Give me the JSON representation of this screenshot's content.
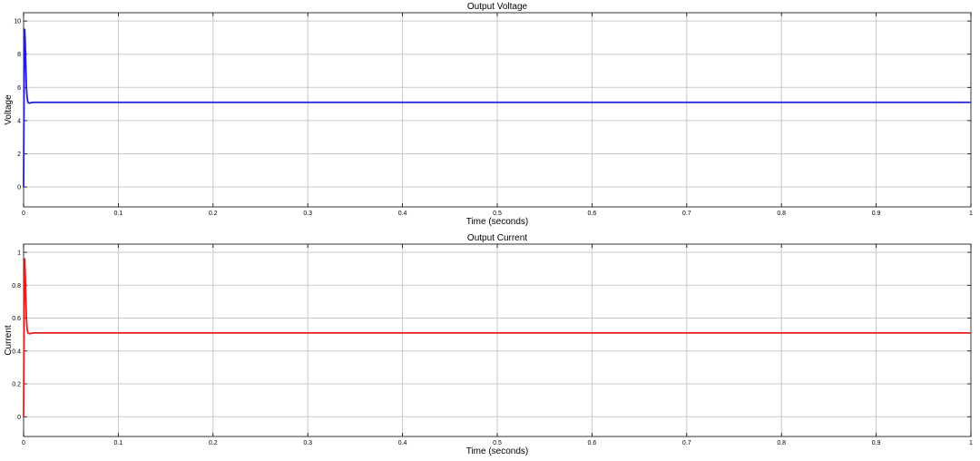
{
  "chart_data": [
    {
      "type": "line",
      "title": "Output Voltage",
      "xlabel": "Time (seconds)",
      "ylabel": "Voltage",
      "xlim": [
        0,
        1
      ],
      "ylim": [
        -1.2,
        10.5
      ],
      "xticks": [
        0,
        0.1,
        0.2,
        0.3,
        0.4,
        0.5,
        0.6,
        0.7,
        0.8,
        0.9,
        1
      ],
      "xtick_labels": [
        "0",
        "0.1",
        "0.2",
        "0.3",
        "0.4",
        "0.5",
        "0.6",
        "0.7",
        "0.8",
        "0.9",
        "1"
      ],
      "yticks": [
        0,
        2,
        4,
        6,
        8,
        10
      ],
      "ytick_labels": [
        "0",
        "2",
        "4",
        "6",
        "8",
        "10"
      ],
      "grid": true,
      "color": "#1f1fdc",
      "series": [
        {
          "x": [
            0,
            0.0003,
            0.0007,
            0.0012,
            0.0018,
            0.0024,
            0.003,
            0.0037,
            0.0045,
            0.006,
            0.01,
            0.05,
            0.2,
            0.4,
            0.6,
            0.8,
            1.0
          ],
          "y": [
            0,
            3.5,
            7.5,
            9.5,
            8.6,
            7.2,
            6.0,
            5.4,
            5.1,
            5.05,
            5.1,
            5.1,
            5.1,
            5.1,
            5.1,
            5.1,
            5.1
          ]
        }
      ]
    },
    {
      "type": "line",
      "title": "Output Current",
      "xlabel": "Time (seconds)",
      "ylabel": "Current",
      "xlim": [
        0,
        1
      ],
      "ylim": [
        -0.12,
        1.05
      ],
      "xticks": [
        0,
        0.1,
        0.2,
        0.3,
        0.4,
        0.5,
        0.6,
        0.7,
        0.8,
        0.9,
        1
      ],
      "xtick_labels": [
        "0",
        "0.1",
        "0.2",
        "0.3",
        "0.4",
        "0.5",
        "0.6",
        "0.7",
        "0.8",
        "0.9",
        "1"
      ],
      "yticks": [
        0,
        0.2,
        0.4,
        0.6,
        0.8,
        1
      ],
      "ytick_labels": [
        "0",
        "0.2",
        "0.4",
        "0.6",
        "0.8",
        "1"
      ],
      "grid": true,
      "color": "#e61e1e",
      "series": [
        {
          "x": [
            0,
            0.0003,
            0.0007,
            0.0012,
            0.0018,
            0.0024,
            0.003,
            0.0037,
            0.0045,
            0.006,
            0.01,
            0.05,
            0.2,
            0.4,
            0.6,
            0.8,
            1.0
          ],
          "y": [
            0,
            0.35,
            0.75,
            0.96,
            0.86,
            0.72,
            0.6,
            0.54,
            0.51,
            0.505,
            0.51,
            0.51,
            0.51,
            0.51,
            0.51,
            0.51,
            0.51
          ]
        }
      ]
    }
  ]
}
